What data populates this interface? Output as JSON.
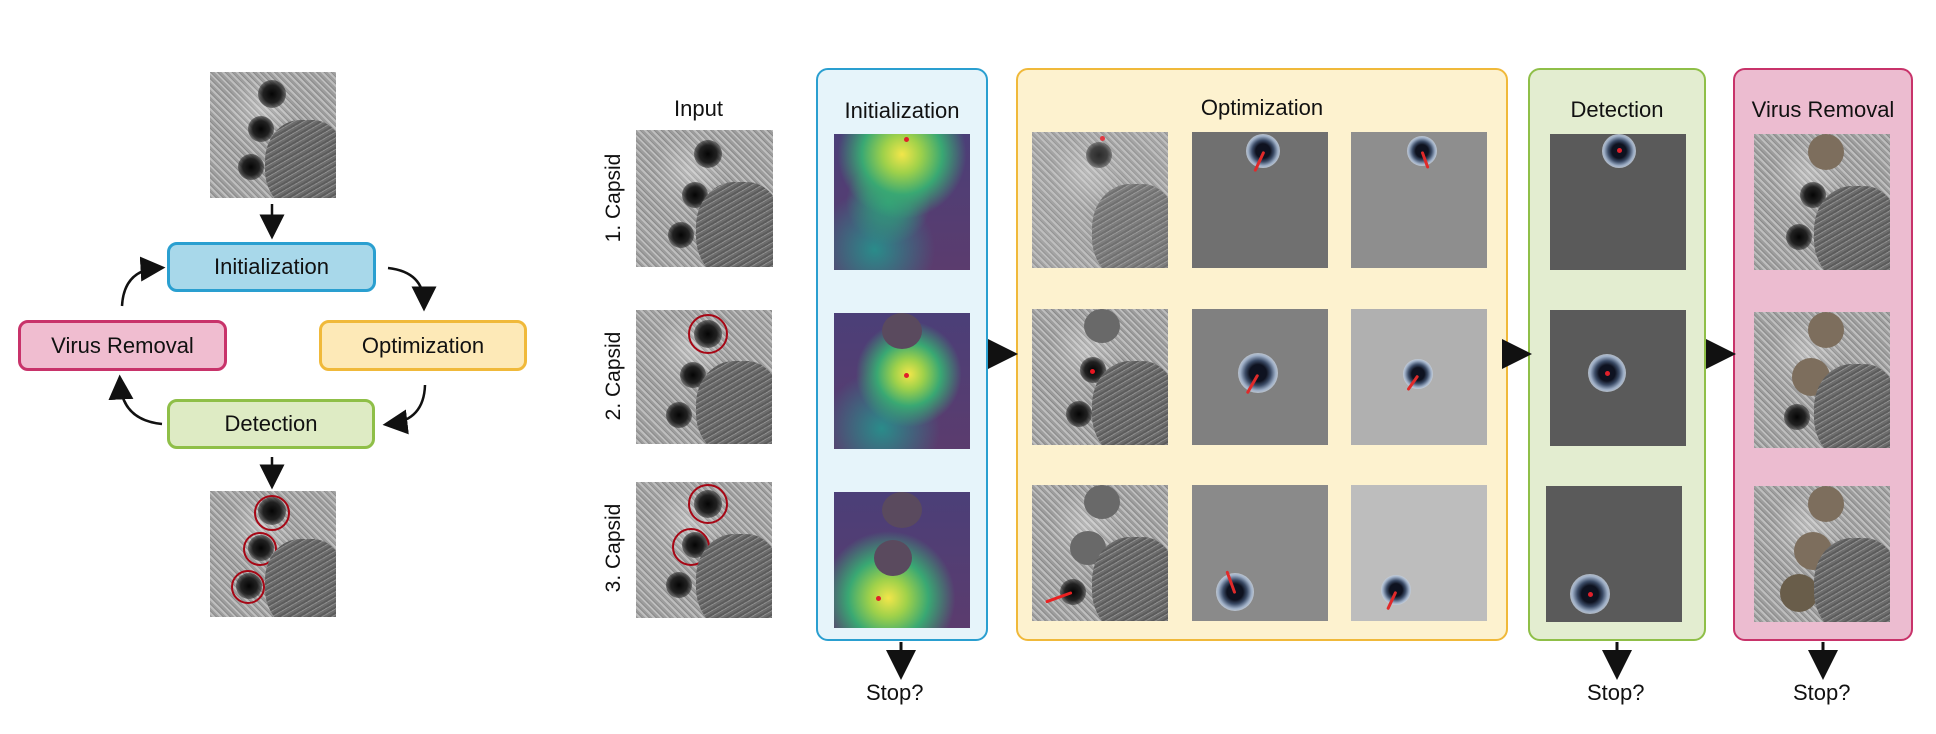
{
  "cycle": {
    "nodes": {
      "initialization": "Initialization",
      "optimization": "Optimization",
      "detection": "Detection",
      "virus_removal": "Virus Removal"
    }
  },
  "pipeline": {
    "input_title": "Input",
    "rows": [
      "1. Capsid",
      "2. Capsid",
      "3. Capsid"
    ],
    "panels": {
      "initialization": "Initialization",
      "optimization": "Optimization",
      "detection": "Detection",
      "virus_removal": "Virus Removal"
    },
    "stop_labels": [
      "Stop?",
      "Stop?",
      "Stop?"
    ]
  },
  "colors": {
    "initialization_fill": "#a8d8ea",
    "initialization_border": "#2a9fd0",
    "initialization_panel": "#e6f4fa",
    "optimization_fill": "#fde9b7",
    "optimization_border": "#f0b93a",
    "optimization_panel": "#fdf2cf",
    "detection_fill": "#deebc4",
    "detection_border": "#8fbf48",
    "detection_panel": "#e3edd0",
    "virus_removal_fill": "#f0bdd0",
    "virus_removal_border": "#c8336a",
    "virus_removal_panel": "#ecbcd0",
    "ring": "#a3121f"
  }
}
